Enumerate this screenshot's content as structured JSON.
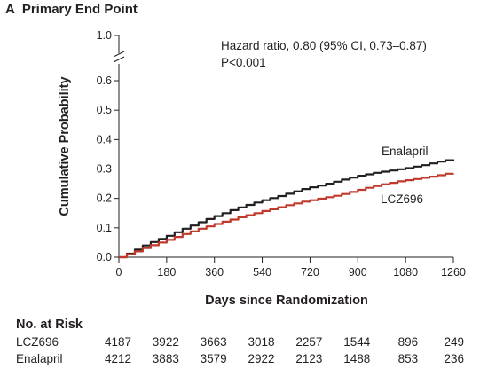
{
  "panel": {
    "letter": "A",
    "title": "Primary End Point"
  },
  "chart_data": {
    "type": "line",
    "xlabel": "Days since Randomization",
    "ylabel": "Cumulative Probability",
    "x_ticks": [
      0,
      180,
      360,
      540,
      720,
      900,
      1080,
      1260
    ],
    "y_ticks": [
      "0.0",
      "0.1",
      "0.2",
      "0.3",
      "0.4",
      "0.5",
      "0.6"
    ],
    "y_top_label": "1.0",
    "y_axis_break": true,
    "xlim": [
      0,
      1260
    ],
    "ylim": [
      0,
      0.6
    ],
    "annotation": [
      "Hazard ratio, 0.80 (95% CI, 0.73–0.87)",
      "P<0.001"
    ],
    "grid": false,
    "series": [
      {
        "name": "Enalapril",
        "color": "#231f20",
        "x": [
          0,
          30,
          60,
          90,
          120,
          150,
          180,
          210,
          240,
          270,
          300,
          330,
          360,
          390,
          420,
          450,
          480,
          510,
          540,
          570,
          600,
          630,
          660,
          690,
          720,
          750,
          780,
          810,
          840,
          870,
          900,
          930,
          960,
          990,
          1020,
          1050,
          1080,
          1110,
          1140,
          1170,
          1200,
          1230,
          1260
        ],
        "y": [
          0,
          0.012,
          0.026,
          0.04,
          0.052,
          0.062,
          0.073,
          0.085,
          0.097,
          0.108,
          0.119,
          0.13,
          0.14,
          0.15,
          0.16,
          0.169,
          0.178,
          0.186,
          0.194,
          0.201,
          0.208,
          0.216,
          0.224,
          0.232,
          0.238,
          0.244,
          0.25,
          0.257,
          0.264,
          0.271,
          0.277,
          0.282,
          0.287,
          0.291,
          0.295,
          0.299,
          0.303,
          0.308,
          0.313,
          0.319,
          0.325,
          0.33,
          0.333
        ]
      },
      {
        "name": "LCZ696",
        "color": "#c0392b",
        "x": [
          0,
          30,
          60,
          90,
          120,
          150,
          180,
          210,
          240,
          270,
          300,
          330,
          360,
          390,
          420,
          450,
          480,
          510,
          540,
          570,
          600,
          630,
          660,
          690,
          720,
          750,
          780,
          810,
          840,
          870,
          900,
          930,
          960,
          990,
          1020,
          1050,
          1080,
          1110,
          1140,
          1170,
          1200,
          1230,
          1260
        ],
        "y": [
          0,
          0.01,
          0.02,
          0.031,
          0.041,
          0.05,
          0.059,
          0.069,
          0.079,
          0.088,
          0.097,
          0.105,
          0.113,
          0.121,
          0.128,
          0.136,
          0.143,
          0.15,
          0.157,
          0.163,
          0.17,
          0.177,
          0.183,
          0.189,
          0.194,
          0.199,
          0.204,
          0.209,
          0.215,
          0.222,
          0.229,
          0.236,
          0.242,
          0.248,
          0.253,
          0.258,
          0.262,
          0.266,
          0.27,
          0.274,
          0.279,
          0.284,
          0.285
        ]
      }
    ]
  },
  "risk_table": {
    "title": "No. at Risk",
    "rows": [
      {
        "label": "LCZ696",
        "values": [
          "4187",
          "3922",
          "3663",
          "3018",
          "2257",
          "1544",
          "896",
          "249"
        ]
      },
      {
        "label": "Enalapril",
        "values": [
          "4212",
          "3883",
          "3579",
          "2922",
          "2123",
          "1488",
          "853",
          "236"
        ]
      }
    ]
  }
}
